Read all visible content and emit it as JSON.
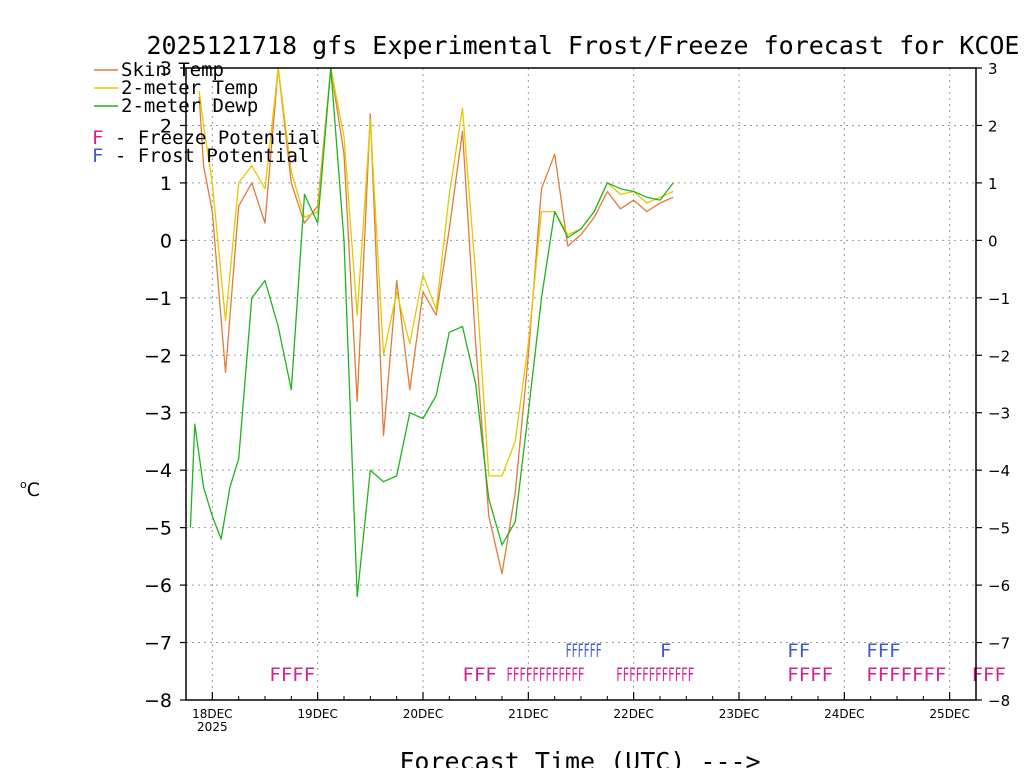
{
  "chart_data": {
    "type": "line",
    "title": "2025121718 gfs Experimental Frost/Freeze forecast for KCOE",
    "ylabel_deg": "o",
    "ylabel_unit": "C",
    "xlabel": "Forecast Time (UTC) --->",
    "ylim": [
      -8,
      3
    ],
    "y_ticks": [
      3,
      2,
      1,
      0,
      -1,
      -2,
      -3,
      -4,
      -5,
      -6,
      -7,
      -8
    ],
    "x_range_hours": [
      -6,
      174
    ],
    "x_tick_hours": [
      0,
      24,
      48,
      72,
      96,
      120,
      144,
      168
    ],
    "x_tick_labels": [
      "18DEC",
      "19DEC",
      "20DEC",
      "21DEC",
      "22DEC",
      "23DEC",
      "24DEC",
      "25DEC"
    ],
    "x_tick_sublabel": "2025",
    "grid": true,
    "legend_position": "top-left",
    "legend": {
      "series": [
        {
          "name": "Skin Temp",
          "color": "#e07b39"
        },
        {
          "name": "2-meter Temp",
          "color": "#e6c800"
        },
        {
          "name": "2-meter Dewp",
          "color": "#1fb41f"
        }
      ],
      "markers": [
        {
          "letter": "F",
          "text": " - Freeze Potential",
          "color": "#d6218e"
        },
        {
          "letter": "F",
          "text": " - Frost Potential",
          "color": "#3d5cc7"
        }
      ]
    },
    "series": [
      {
        "name": "Skin Temp",
        "color": "#e07b39",
        "x": [
          -3,
          -2,
          0,
          3,
          6,
          9,
          12,
          15,
          18,
          21,
          24,
          27,
          30,
          33,
          36,
          39,
          42,
          45,
          48,
          51,
          54,
          57,
          60,
          63,
          66,
          69,
          72,
          75,
          78,
          81,
          84,
          87,
          90,
          93,
          96,
          99,
          102,
          105,
          108,
          111,
          114,
          117
        ],
        "values": [
          2.5,
          1.3,
          0.5,
          -2.3,
          0.6,
          1.0,
          0.3,
          3.0,
          1.0,
          0.3,
          0.6,
          3.0,
          1.5,
          -2.8,
          2.2,
          -3.4,
          -0.7,
          -2.6,
          -0.9,
          -1.3,
          0.2,
          1.9,
          -1.8,
          -4.8,
          -5.8,
          -4.4,
          -2.0,
          0.9,
          1.5,
          -0.1,
          0.1,
          0.4,
          0.85,
          0.55,
          0.7,
          0.5,
          0.65,
          0.75,
          null,
          null,
          null,
          null
        ]
      },
      {
        "name": "2-meter Temp",
        "color": "#e6c800",
        "x": [
          -3,
          -2,
          0,
          3,
          6,
          9,
          12,
          15,
          18,
          21,
          24,
          27,
          30,
          33,
          36,
          39,
          42,
          45,
          48,
          51,
          54,
          57,
          60,
          63,
          66,
          69,
          72,
          75,
          78,
          81,
          84,
          87,
          90,
          93,
          96,
          99,
          102,
          105
        ],
        "values": [
          2.6,
          2.0,
          1.0,
          -1.4,
          1.0,
          1.3,
          0.9,
          3.0,
          1.2,
          0.4,
          0.5,
          3.0,
          1.8,
          -1.3,
          2.1,
          -2.0,
          -0.9,
          -1.8,
          -0.6,
          -1.2,
          0.8,
          2.3,
          -0.6,
          -4.1,
          -4.1,
          -3.5,
          -1.8,
          0.5,
          0.5,
          0.1,
          0.2,
          0.5,
          1.0,
          0.8,
          0.85,
          0.65,
          0.75,
          0.85
        ]
      },
      {
        "name": "2-meter Dewp",
        "color": "#1fb41f",
        "x": [
          -5,
          -4,
          -2,
          0,
          2,
          4,
          6,
          9,
          12,
          15,
          18,
          21,
          24,
          27,
          30,
          33,
          36,
          39,
          42,
          45,
          48,
          51,
          54,
          57,
          60,
          63,
          66,
          69,
          72,
          75,
          78,
          81,
          84,
          87,
          90,
          93,
          96,
          99,
          102,
          105
        ],
        "values": [
          -5.0,
          -3.2,
          -4.3,
          -4.8,
          -5.2,
          -4.3,
          -3.8,
          -1.0,
          -0.7,
          -1.5,
          -2.6,
          0.8,
          0.3,
          3.0,
          0.0,
          -6.2,
          -4.0,
          -4.2,
          -4.1,
          -3.0,
          -3.1,
          -2.7,
          -1.6,
          -1.5,
          -2.5,
          -4.5,
          -5.3,
          -4.9,
          -3.0,
          -1.0,
          0.5,
          0.05,
          0.2,
          0.5,
          1.0,
          0.9,
          0.85,
          0.75,
          0.7,
          1.0
        ]
      }
    ],
    "frost_markers": [
      {
        "hour": 80.5,
        "text": "FFFFFF"
      },
      {
        "hour": 102,
        "text": "F"
      },
      {
        "hour": 131,
        "text": "FF"
      },
      {
        "hour": 149,
        "text": "FFF"
      }
    ],
    "freeze_markers": [
      {
        "hour": 13,
        "text": "FFFF"
      },
      {
        "hour": 57,
        "text": "FFF"
      },
      {
        "hour": 67,
        "text": "FFFFFFFFFFFF"
      },
      {
        "hour": 92,
        "text": "FFFFFFFFFFFF"
      },
      {
        "hour": 131,
        "text": "FFFF"
      },
      {
        "hour": 149,
        "text": "FFFFFFF"
      },
      {
        "hour": 173,
        "text": "FFF"
      }
    ]
  }
}
